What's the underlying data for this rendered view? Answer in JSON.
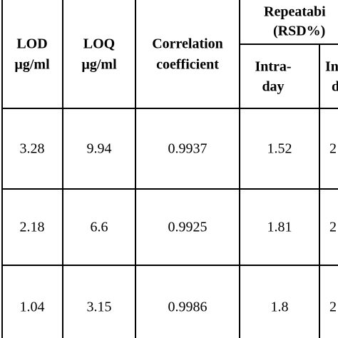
{
  "table": {
    "header": [
      [
        "LOD",
        "µg/ml"
      ],
      [
        "LOQ",
        "µg/ml"
      ],
      [
        "Correlation",
        "coefficient"
      ]
    ],
    "group": [
      "Repeatabi",
      "(RSD%)"
    ],
    "subheader": [
      [
        "Intra-",
        "day"
      ],
      [
        "In",
        "d"
      ]
    ],
    "rows": [
      [
        "3.28",
        "9.94",
        "0.9937",
        "1.52",
        "2"
      ],
      [
        "2.18",
        "6.6",
        "0.9925",
        "1.81",
        "2"
      ],
      [
        "1.04",
        "3.15",
        "0.9986",
        "1.8",
        "2"
      ]
    ]
  }
}
